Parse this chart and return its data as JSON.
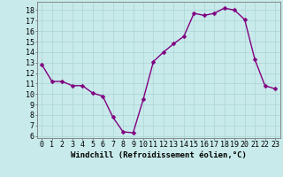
{
  "x": [
    0,
    1,
    2,
    3,
    4,
    5,
    6,
    7,
    8,
    9,
    10,
    11,
    12,
    13,
    14,
    15,
    16,
    17,
    18,
    19,
    20,
    21,
    22,
    23
  ],
  "y": [
    12.8,
    11.2,
    11.2,
    10.8,
    10.8,
    10.1,
    9.8,
    7.8,
    6.4,
    6.3,
    9.5,
    13.1,
    14.0,
    14.8,
    15.5,
    17.7,
    17.5,
    17.7,
    18.2,
    18.0,
    17.1,
    13.3,
    10.8,
    10.5
  ],
  "line_color": "#800080",
  "marker_color": "#800080",
  "bg_color": "#c8eaea",
  "grid_color": "#b0d8d8",
  "xlabel": "Windchill (Refroidissement éolien,°C)",
  "ylim": [
    5.8,
    18.8
  ],
  "xlim": [
    -0.5,
    23.5
  ],
  "yticks": [
    6,
    7,
    8,
    9,
    10,
    11,
    12,
    13,
    14,
    15,
    16,
    17,
    18
  ],
  "xticks": [
    0,
    1,
    2,
    3,
    4,
    5,
    6,
    7,
    8,
    9,
    10,
    11,
    12,
    13,
    14,
    15,
    16,
    17,
    18,
    19,
    20,
    21,
    22,
    23
  ],
  "xlabel_fontsize": 6.5,
  "tick_fontsize": 6.0,
  "line_width": 1.0,
  "marker_size": 2.5
}
